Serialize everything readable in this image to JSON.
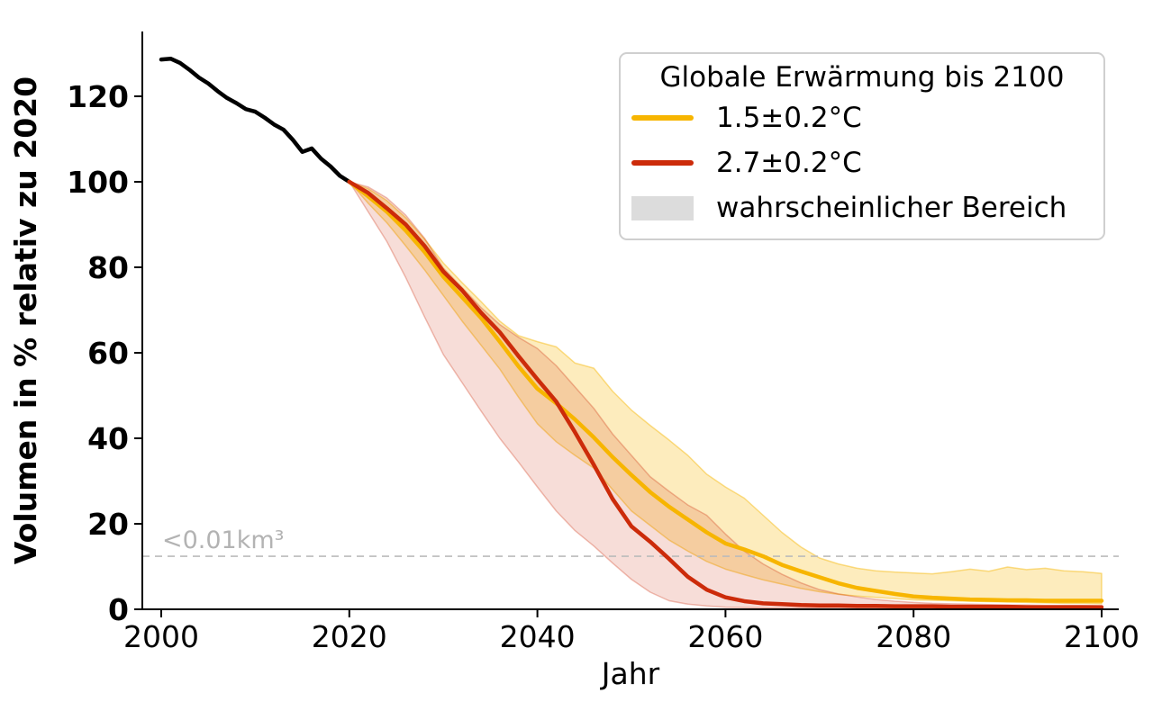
{
  "chart_data": {
    "type": "line",
    "title": "",
    "xlabel": "Jahr",
    "ylabel": "Volumen in % relativ zu 2020",
    "xlim": [
      1998,
      2102
    ],
    "ylim": [
      0,
      135
    ],
    "grid": false,
    "x_ticks": [
      {
        "v": 2000,
        "label": "2000"
      },
      {
        "v": 2020,
        "label": "2020"
      },
      {
        "v": 2040,
        "label": "2040"
      },
      {
        "v": 2060,
        "label": "2060"
      },
      {
        "v": 2080,
        "label": "2080"
      },
      {
        "v": 2100,
        "label": "2100"
      }
    ],
    "y_ticks": [
      {
        "v": 0,
        "label": "0"
      },
      {
        "v": 20,
        "label": "20"
      },
      {
        "v": 40,
        "label": "40"
      },
      {
        "v": 60,
        "label": "60"
      },
      {
        "v": 80,
        "label": "80"
      },
      {
        "v": 100,
        "label": "100"
      },
      {
        "v": 120,
        "label": "120"
      }
    ],
    "threshold": {
      "value": 12.4,
      "label": "<0.01km³",
      "color": "#bbbbbb",
      "label_color": "#b3b3b3"
    },
    "legend": {
      "title": "Globale Erwärmung bis 2100",
      "position": "upper right",
      "entries": [
        {
          "label": "1.5±0.2°C",
          "color": "#F7B500",
          "type": "line"
        },
        {
          "label": "2.7±0.2°C",
          "color": "#CC2B0A",
          "type": "line"
        },
        {
          "label": "wahrscheinlicher Bereich",
          "color": "#DCDCDC",
          "type": "patch"
        }
      ]
    },
    "series": [
      {
        "id": "beobachtung-historisch",
        "color": "#000000",
        "x": [
          2000,
          2001,
          2002,
          2003,
          2004,
          2005,
          2006,
          2007,
          2008,
          2009,
          2010,
          2011,
          2012,
          2013,
          2014,
          2015,
          2016,
          2017,
          2018,
          2019,
          2020
        ],
        "y": [
          128.6,
          128.8,
          127.8,
          126.2,
          124.4,
          123.0,
          121.2,
          119.6,
          118.4,
          117.0,
          116.4,
          115.0,
          113.4,
          112.2,
          109.8,
          107.0,
          107.8,
          105.4,
          103.6,
          101.4,
          100.0
        ]
      },
      {
        "id": "erwaermung-1-5C",
        "color": "#F7B500",
        "x": [
          2020,
          2022,
          2024,
          2026,
          2028,
          2030,
          2032,
          2034,
          2036,
          2038,
          2040,
          2042,
          2044,
          2046,
          2048,
          2050,
          2052,
          2054,
          2056,
          2058,
          2060,
          2062,
          2064,
          2066,
          2068,
          2070,
          2072,
          2074,
          2076,
          2078,
          2080,
          2082,
          2084,
          2086,
          2088,
          2090,
          2092,
          2094,
          2096,
          2098,
          2100
        ],
        "y": [
          100,
          96.6,
          93.0,
          88.6,
          83.6,
          77.8,
          73.0,
          68.2,
          62.6,
          56.8,
          51.6,
          48.2,
          44.4,
          40.2,
          35.6,
          31.4,
          27.4,
          24.0,
          21.0,
          18.0,
          15.4,
          14.0,
          12.4,
          10.4,
          8.9,
          7.5,
          6.1,
          5.0,
          4.3,
          3.6,
          3.0,
          2.7,
          2.5,
          2.3,
          2.2,
          2.1,
          2.1,
          2.0,
          2.0,
          2.0,
          2.0
        ],
        "band": {
          "fill": "rgba(247,181,0,0.26)",
          "edge": "rgba(247,181,0,0.45)",
          "upper": [
            100,
            98.4,
            95.6,
            91.6,
            86.6,
            81.0,
            76.4,
            72.0,
            67.4,
            64.0,
            62.6,
            61.4,
            57.6,
            56.4,
            51.0,
            46.6,
            43.0,
            39.6,
            36.0,
            31.6,
            28.6,
            26.0,
            22.0,
            18.0,
            14.6,
            12.0,
            10.6,
            9.6,
            9.0,
            8.7,
            8.5,
            8.3,
            8.8,
            9.4,
            8.9,
            9.9,
            9.3,
            9.6,
            9.0,
            8.8,
            8.4
          ],
          "lower": [
            100,
            95.0,
            90.4,
            85.0,
            79.4,
            73.4,
            67.4,
            61.8,
            56.2,
            49.6,
            43.4,
            39.2,
            36.0,
            33.0,
            28.0,
            23.0,
            19.6,
            16.2,
            13.6,
            11.2,
            9.4,
            8.1,
            6.9,
            5.9,
            4.9,
            4.1,
            3.5,
            3.1,
            2.8,
            2.5,
            2.2,
            2.1,
            2.0,
            1.9,
            1.8,
            1.7,
            1.6,
            1.5,
            1.4,
            1.4,
            1.3
          ]
        }
      },
      {
        "id": "erwaermung-2-7C",
        "color": "#CC2B0A",
        "x": [
          2020,
          2022,
          2024,
          2026,
          2028,
          2030,
          2032,
          2034,
          2036,
          2038,
          2040,
          2042,
          2044,
          2046,
          2048,
          2050,
          2052,
          2054,
          2056,
          2058,
          2060,
          2062,
          2064,
          2066,
          2068,
          2070,
          2072,
          2074,
          2076,
          2078,
          2080,
          2082,
          2084,
          2086,
          2088,
          2090,
          2092,
          2094,
          2096,
          2098,
          2100
        ],
        "y": [
          100,
          97.4,
          93.8,
          90.0,
          85.0,
          79.0,
          74.6,
          69.4,
          64.8,
          59.2,
          53.8,
          48.6,
          41.4,
          33.8,
          25.8,
          19.4,
          15.8,
          11.8,
          7.6,
          4.6,
          2.8,
          1.9,
          1.4,
          1.2,
          1.0,
          0.9,
          0.9,
          0.8,
          0.8,
          0.7,
          0.7,
          0.7,
          0.6,
          0.6,
          0.6,
          0.6,
          0.5,
          0.5,
          0.5,
          0.5,
          0.5
        ],
        "band": {
          "fill": "rgba(204,43,10,0.16)",
          "edge": "rgba(204,43,10,0.30)",
          "upper": [
            100,
            98.8,
            96.2,
            92.2,
            86.8,
            79.8,
            75.2,
            70.6,
            66.6,
            63.6,
            61.0,
            57.0,
            52.0,
            47.0,
            41.0,
            36.0,
            31.0,
            27.6,
            24.4,
            22.0,
            17.6,
            13.6,
            10.6,
            8.2,
            6.2,
            4.6,
            3.6,
            2.9,
            2.3,
            1.9,
            1.6,
            1.4,
            1.3,
            1.2,
            1.1,
            1.0,
            1.0,
            0.9,
            0.9,
            0.9,
            0.8
          ],
          "lower": [
            100,
            93.0,
            86.0,
            77.6,
            68.4,
            59.6,
            53.0,
            46.4,
            40.0,
            34.4,
            28.6,
            23.0,
            18.4,
            14.8,
            10.8,
            7.0,
            4.0,
            2.0,
            1.2,
            0.8,
            0.5,
            0.4,
            0.35,
            0.3,
            0.3,
            0.25,
            0.2,
            0.2,
            0.2,
            0.15,
            0.15,
            0.15,
            0.1,
            0.1,
            0.1,
            0.1,
            0.1,
            0.1,
            0.1,
            0.1,
            0.1
          ]
        }
      }
    ]
  }
}
